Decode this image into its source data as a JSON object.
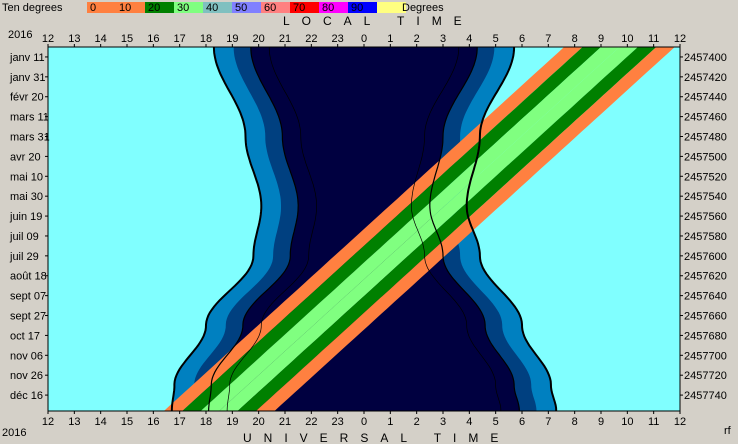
{
  "header": {
    "legend_label": "Ten degrees",
    "legend_units": "Degrees",
    "year": "2016",
    "footer_mark": "rf"
  },
  "legend": [
    {
      "label": "0",
      "color": "#ff8040"
    },
    {
      "label": "10",
      "color": "#ff8040"
    },
    {
      "label": "20",
      "color": "#008000"
    },
    {
      "label": "30",
      "color": "#80ff80"
    },
    {
      "label": "40",
      "color": "#80c0c0"
    },
    {
      "label": "50",
      "color": "#8080ff"
    },
    {
      "label": "60",
      "color": "#ff8080"
    },
    {
      "label": "70",
      "color": "#ff0000"
    },
    {
      "label": "80",
      "color": "#ff00ff"
    },
    {
      "label": "90",
      "color": "#0000ff"
    },
    {
      "label": "",
      "color": "#ffff80"
    }
  ],
  "chart_data": {
    "type": "area",
    "title_top": "LOCAL TIME",
    "title_bottom": "UNIVERSAL TIME",
    "hour_ticks": [
      "12",
      "13",
      "14",
      "15",
      "16",
      "17",
      "18",
      "19",
      "20",
      "21",
      "22",
      "23",
      "0",
      "1",
      "2",
      "3",
      "4",
      "5",
      "6",
      "7",
      "8",
      "9",
      "10",
      "11",
      "12"
    ],
    "date_labels": [
      "janv 11",
      "janv 31",
      "févr 20",
      "mars 11",
      "mars 31",
      "avr 20",
      "mai 10",
      "mai 30",
      "juin 19",
      "juil 09",
      "juil 29",
      "août 18",
      "sept 07",
      "sept 27",
      "oct 17",
      "nov 06",
      "nov 26",
      "déc 16"
    ],
    "jd_labels": [
      "2457400",
      "2457420",
      "2457440",
      "2457460",
      "2457480",
      "2457500",
      "2457520",
      "2457540",
      "2457560",
      "2457580",
      "2457600",
      "2457620",
      "2457640",
      "2457660",
      "2457680",
      "2457700",
      "2457720",
      "2457740"
    ],
    "colors": {
      "day": "#80ffff",
      "twilight_civil": "#0080c0",
      "twilight_nautical": "#004080",
      "night": "#000040",
      "alt_0_10": "#ff8040",
      "alt_10_20": "#008000",
      "alt_20_30": "#80ff80"
    },
    "night_boundary": {
      "sunset_hours": [
        [
          0,
          18.3
        ],
        [
          90,
          19.5
        ],
        [
          160,
          20.1
        ],
        [
          210,
          19.8
        ],
        [
          280,
          18.0
        ],
        [
          340,
          16.8
        ],
        [
          366,
          16.7
        ]
      ],
      "sunrise_hours": [
        [
          0,
          5.7
        ],
        [
          90,
          4.4
        ],
        [
          160,
          3.9
        ],
        [
          210,
          4.4
        ],
        [
          280,
          6.0
        ],
        [
          340,
          7.1
        ],
        [
          366,
          7.3
        ]
      ]
    },
    "band_dawn_dusk_hours": [
      {
        "day": 0,
        "start": 16.7,
        "end": 7.7
      },
      {
        "day": 366,
        "start": 16.3,
        "end": 7.5
      }
    ],
    "moon_band": {
      "start_left": [
        [
          0,
          7.6
        ],
        [
          366,
          16.4
        ]
      ],
      "band_width_hours": 0.7,
      "layers": [
        "alt_0_10",
        "alt_10_20",
        "alt_20_30",
        "alt_20_30",
        "alt_10_20",
        "alt_0_10"
      ]
    },
    "xlim": [
      12,
      36
    ],
    "ylim": [
      0,
      366
    ],
    "grid": false
  }
}
